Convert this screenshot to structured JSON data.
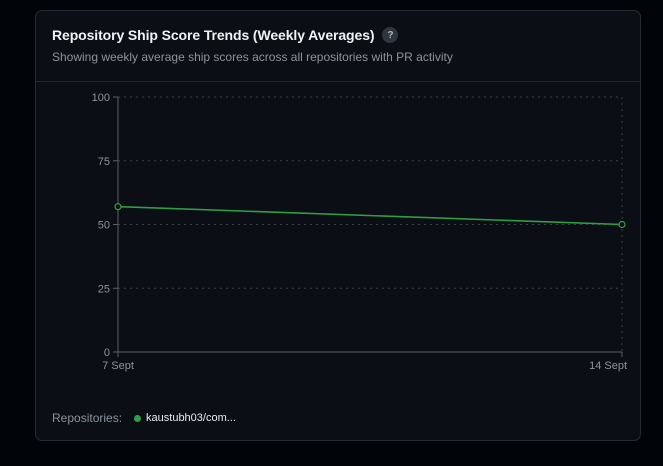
{
  "card": {
    "title": "Repository Ship Score Trends (Weekly Averages)",
    "help_glyph": "?",
    "subtitle": "Showing weekly average ship scores across all repositories with PR activity"
  },
  "legend": {
    "label": "Repositories:",
    "items": [
      {
        "label": "kaustubh03/com...",
        "color": "#2ea043"
      }
    ]
  },
  "colors": {
    "series": "#2ea043",
    "background": "#0b0e14",
    "border": "#262b33"
  },
  "chart_data": {
    "type": "line",
    "title": "Repository Ship Score Trends (Weekly Averages)",
    "x": [
      "7 Sept",
      "14 Sept"
    ],
    "series": [
      {
        "name": "kaustubh03/com...",
        "values": [
          57,
          50
        ],
        "color": "#2ea043"
      }
    ],
    "ylim": [
      0,
      100
    ],
    "yticks": [
      0,
      25,
      50,
      75,
      100
    ],
    "grid": true,
    "legend": "bottom-left"
  }
}
